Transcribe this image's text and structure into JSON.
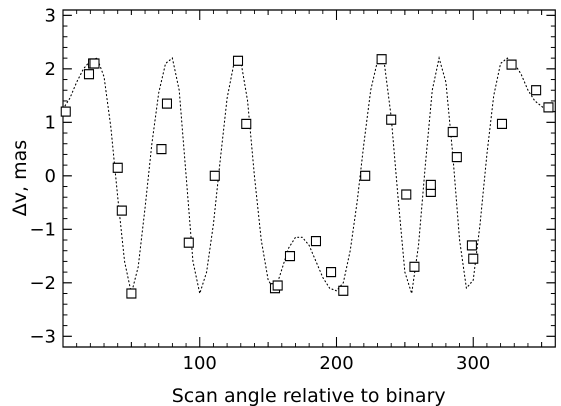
{
  "chart_data": {
    "type": "scatter",
    "xlabel": "Scan angle relative to binary",
    "ylabel": "Δv, mas",
    "xlim": [
      0,
      360
    ],
    "ylim": [
      -3.2,
      3.1
    ],
    "xticks": [
      100,
      200,
      300
    ],
    "yticks": [
      -3,
      -2,
      -1,
      0,
      1,
      2,
      3
    ],
    "grid": false,
    "series": [
      {
        "marker": "square",
        "x": [
          2,
          19,
          22,
          23,
          40,
          43,
          50,
          72,
          76,
          92,
          111,
          128,
          134,
          155,
          157,
          166,
          185,
          196,
          205,
          221,
          233,
          240,
          251,
          257,
          269,
          269,
          285,
          288,
          299,
          300,
          321,
          328,
          346,
          355
        ],
        "y": [
          1.2,
          1.9,
          2.1,
          2.1,
          0.15,
          -0.65,
          -2.2,
          0.5,
          1.35,
          -1.25,
          0.0,
          2.15,
          0.97,
          -2.1,
          -2.05,
          -1.5,
          -1.22,
          -1.8,
          -2.15,
          0.0,
          2.18,
          1.05,
          -0.35,
          -1.7,
          -0.3,
          -0.17,
          0.82,
          0.35,
          -1.3,
          -1.55,
          0.97,
          2.08,
          1.6,
          1.28
        ]
      }
    ],
    "model_curve": {
      "style": "dotted",
      "x": [
        0,
        5,
        10,
        15,
        20,
        25,
        30,
        35,
        40,
        45,
        50,
        55,
        60,
        65,
        70,
        75,
        80,
        85,
        90,
        95,
        100,
        105,
        110,
        115,
        120,
        125,
        130,
        135,
        140,
        145,
        150,
        155,
        160,
        165,
        170,
        175,
        180,
        185,
        190,
        195,
        200,
        205,
        210,
        215,
        220,
        225,
        230,
        235,
        240,
        245,
        250,
        255,
        260,
        265,
        270,
        275,
        280,
        285,
        290,
        295,
        300,
        305,
        310,
        315,
        320,
        325,
        330,
        335,
        340,
        345,
        350,
        355,
        360
      ],
      "y": [
        1.25,
        1.45,
        1.75,
        2.0,
        2.15,
        2.2,
        1.85,
        0.9,
        -0.4,
        -1.6,
        -2.2,
        -1.7,
        -0.6,
        0.6,
        1.55,
        2.1,
        2.2,
        1.6,
        0.0,
        -1.6,
        -2.2,
        -1.8,
        -0.9,
        0.3,
        1.45,
        2.1,
        2.15,
        1.4,
        0.0,
        -1.2,
        -1.95,
        -2.15,
        -1.75,
        -1.35,
        -1.15,
        -1.15,
        -1.3,
        -1.6,
        -1.9,
        -2.1,
        -2.15,
        -2.0,
        -1.4,
        -0.5,
        0.6,
        1.6,
        2.15,
        2.1,
        1.1,
        -0.4,
        -1.8,
        -2.2,
        -1.3,
        0.2,
        1.6,
        2.2,
        1.75,
        0.4,
        -1.2,
        -2.1,
        -1.95,
        -0.9,
        0.4,
        1.5,
        2.1,
        2.2,
        2.1,
        1.9,
        1.6,
        1.4,
        1.3,
        1.2,
        1.2
      ]
    }
  }
}
